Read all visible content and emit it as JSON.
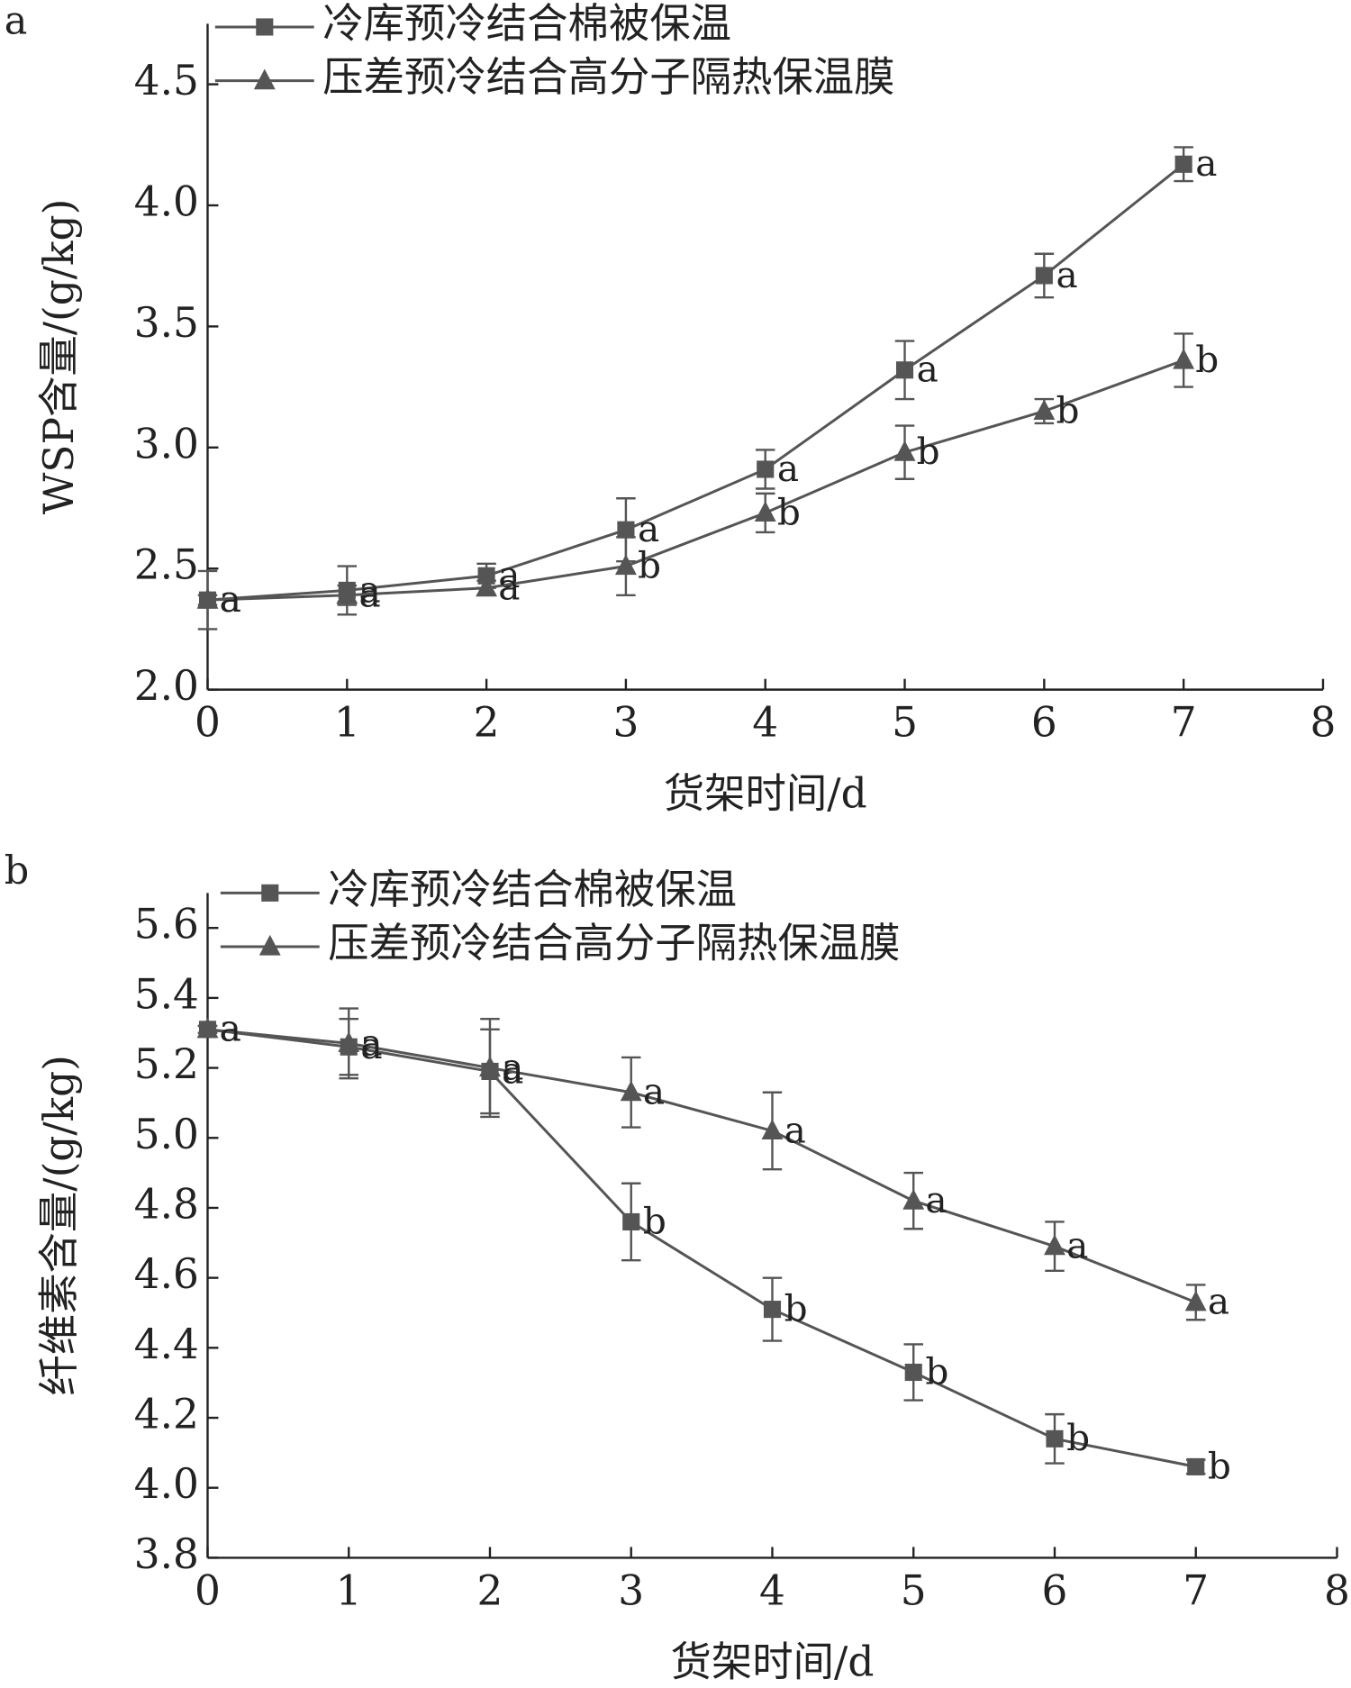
{
  "chart_data": [
    {
      "type": "line",
      "panel": "a",
      "x_label": "货架时间/d",
      "y_label": "WSP含量/(g/kg)",
      "x": [
        0,
        1,
        2,
        3,
        4,
        5,
        6,
        7
      ],
      "xlim": [
        0,
        8
      ],
      "xticks": [
        0,
        1,
        2,
        3,
        4,
        5,
        6,
        7,
        8
      ],
      "ylim": [
        2.0,
        4.75
      ],
      "yticks": [
        {
          "value": 2.0,
          "label": "2.0"
        },
        2.5,
        {
          "value": 3.0,
          "label": "3.0"
        },
        3.5,
        {
          "value": 4.0,
          "label": "4.0"
        },
        4.5
      ],
      "series": [
        {
          "name": "冷库预冷结合棉被保温",
          "marker": "square",
          "color": "#555555",
          "values": [
            2.37,
            2.41,
            2.47,
            2.66,
            2.91,
            3.32,
            3.71,
            4.17
          ],
          "errors": [
            0.12,
            0.1,
            0.05,
            0.13,
            0.08,
            0.12,
            0.09,
            0.07
          ],
          "labels": [
            "a",
            "a",
            "a",
            "a",
            "a",
            "a",
            "a",
            "a"
          ]
        },
        {
          "name": "压差预冷结合高分子隔热保温膜",
          "marker": "triangle",
          "color": "#555555",
          "values": [
            2.37,
            2.39,
            2.42,
            2.51,
            2.73,
            2.98,
            3.15,
            3.36
          ],
          "errors": [
            0.02,
            0.04,
            0.03,
            0.12,
            0.08,
            0.11,
            0.05,
            0.11
          ],
          "labels": [
            "a",
            "a",
            "a",
            "b",
            "b",
            "b",
            "b",
            "b"
          ]
        }
      ]
    },
    {
      "type": "line",
      "panel": "b",
      "x_label": "货架时间/d",
      "y_label": "纤维素含量/(g/kg)",
      "x": [
        0,
        1,
        2,
        3,
        4,
        5,
        6,
        7
      ],
      "xlim": [
        0,
        8
      ],
      "xticks": [
        0,
        1,
        2,
        3,
        4,
        5,
        6,
        7,
        8
      ],
      "ylim": [
        3.8,
        5.7
      ],
      "yticks": [
        3.8,
        {
          "value": 4.0,
          "label": "4.0"
        },
        4.2,
        4.4,
        4.6,
        4.8,
        {
          "value": 5.0,
          "label": "5.0"
        },
        5.2,
        5.4,
        5.6
      ],
      "series": [
        {
          "name": "冷库预冷结合棉被保温",
          "marker": "square",
          "color": "#555555",
          "values": [
            5.31,
            5.26,
            5.19,
            4.76,
            4.51,
            4.33,
            4.14,
            4.06
          ],
          "errors": [
            0.01,
            0.08,
            0.12,
            0.11,
            0.09,
            0.08,
            0.07,
            0.02
          ],
          "labels": [
            "a",
            "a",
            "a",
            "b",
            "b",
            "b",
            "b",
            "b"
          ]
        },
        {
          "name": "压差预冷结合高分子隔热保温膜",
          "marker": "triangle",
          "color": "#555555",
          "values": [
            5.31,
            5.27,
            5.2,
            5.13,
            5.02,
            4.82,
            4.69,
            4.53
          ],
          "errors": [
            0.01,
            0.1,
            0.14,
            0.1,
            0.11,
            0.08,
            0.07,
            0.05
          ],
          "labels": [
            "a",
            "a",
            "a",
            "a",
            "a",
            "a",
            "a",
            "a"
          ]
        }
      ]
    }
  ]
}
